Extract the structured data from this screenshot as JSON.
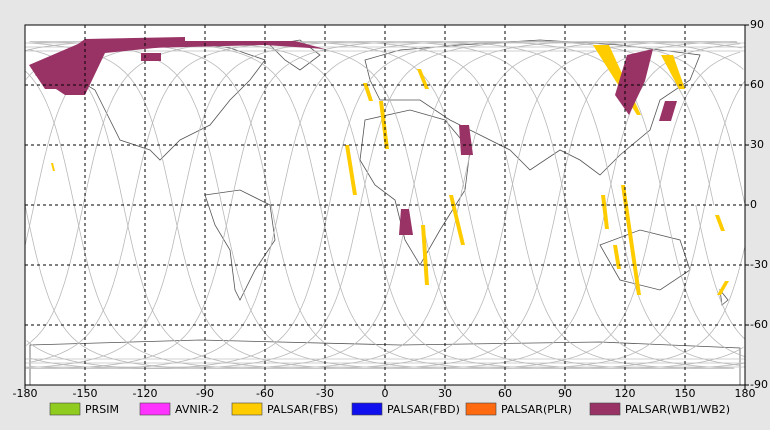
{
  "chart_data": {
    "type": "map",
    "xlim": [
      -180,
      180
    ],
    "ylim": [
      -90,
      90
    ],
    "xticks": [
      -180,
      -150,
      -120,
      -90,
      -60,
      -30,
      0,
      30,
      60,
      90,
      120,
      150,
      180
    ],
    "yticks": [
      90,
      60,
      30,
      0,
      -30,
      -60,
      -90
    ],
    "grid": true,
    "series": [
      {
        "name": "PRSIM",
        "color": "#8fcc1f"
      },
      {
        "name": "AVNIR-2",
        "color": "#ff33ff"
      },
      {
        "name": "PALSAR(FBS)",
        "color": "#ffcc00"
      },
      {
        "name": "PALSAR(FBD)",
        "color": "#1010ee"
      },
      {
        "name": "PALSAR(PLR)",
        "color": "#ff6a10"
      },
      {
        "name": "PALSAR(WB1/WB2)",
        "color": "#993366"
      }
    ]
  }
}
